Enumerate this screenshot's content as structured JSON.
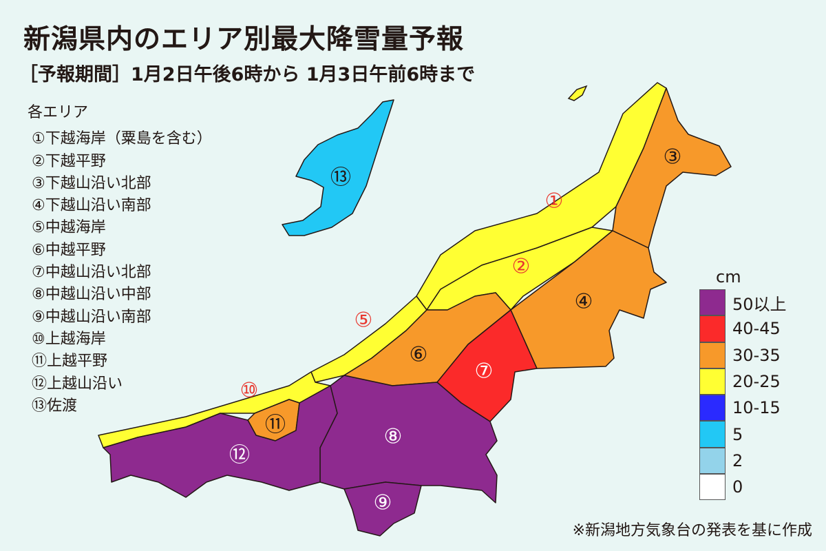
{
  "title": "新潟県内のエリア別最大降雪量予報",
  "subtitle": "［予報期間］1月2日午後6時から 1月3日午前6時まで",
  "area_list": {
    "heading": "各エリア",
    "items": [
      "①下越海岸（粟島を含む）",
      "②下越平野",
      "③下越山沿い北部",
      "④下越山沿い南部",
      "⑤中越海岸",
      "⑥中越平野",
      "⑦中越山沿い北部",
      "⑧中越山沿い中部",
      "⑨中越山沿い南部",
      "⑩上越海岸",
      "⑪上越平野",
      "⑫上越山沿い",
      "⑬佐渡"
    ]
  },
  "map": {
    "regions": [
      {
        "id": "1",
        "label": "①",
        "category": "20-25",
        "color": "#ffff33",
        "label_color": "#e8382f"
      },
      {
        "id": "2",
        "label": "②",
        "category": "20-25",
        "color": "#ffff33",
        "label_color": "#e8382f"
      },
      {
        "id": "3",
        "label": "③",
        "category": "30-35",
        "color": "#f7992a",
        "label_color": "#231815"
      },
      {
        "id": "4",
        "label": "④",
        "category": "30-35",
        "color": "#f7992a",
        "label_color": "#231815"
      },
      {
        "id": "5",
        "label": "⑤",
        "category": "20-25",
        "color": "#ffff33",
        "label_color": "#e8382f"
      },
      {
        "id": "6",
        "label": "⑥",
        "category": "30-35",
        "color": "#f7992a",
        "label_color": "#231815"
      },
      {
        "id": "7",
        "label": "⑦",
        "category": "40-45",
        "color": "#fb2a2a",
        "label_color": "#ffffff"
      },
      {
        "id": "8",
        "label": "⑧",
        "category": "50以上",
        "color": "#8e2a8f",
        "label_color": "#ffffff"
      },
      {
        "id": "9",
        "label": "⑨",
        "category": "50以上",
        "color": "#8e2a8f",
        "label_color": "#ffffff"
      },
      {
        "id": "10",
        "label": "⑩",
        "category": "20-25",
        "color": "#ffff33",
        "label_color": "#e8382f"
      },
      {
        "id": "11",
        "label": "⑪",
        "category": "30-35",
        "color": "#f7992a",
        "label_color": "#231815"
      },
      {
        "id": "12",
        "label": "⑫",
        "category": "50以上",
        "color": "#8e2a8f",
        "label_color": "#ffffff"
      },
      {
        "id": "13",
        "label": "⑬",
        "category": "5",
        "color": "#22c8f5",
        "label_color": "#231815"
      }
    ]
  },
  "legend": {
    "unit": "cm",
    "items": [
      {
        "label": "50以上",
        "color": "#8e2a8f"
      },
      {
        "label": "40-45",
        "color": "#fb2a2a"
      },
      {
        "label": "30-35",
        "color": "#f7992a"
      },
      {
        "label": "20-25",
        "color": "#ffff33"
      },
      {
        "label": "10-15",
        "color": "#2a2aff"
      },
      {
        "label": "5",
        "color": "#22c8f5"
      },
      {
        "label": "2",
        "color": "#93d3ea"
      },
      {
        "label": "0",
        "color": "#ffffff"
      }
    ]
  },
  "note": "※新潟地方気象台の発表を基に作成"
}
